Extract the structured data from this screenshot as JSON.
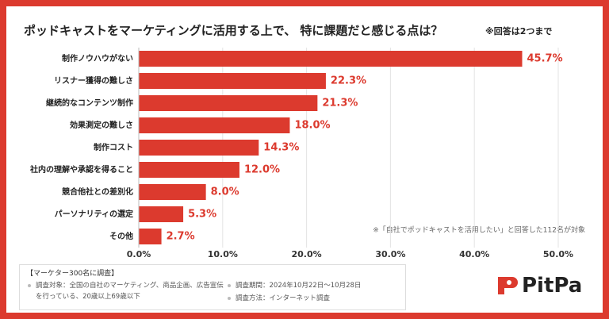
{
  "chart_data": {
    "type": "hbar",
    "title": "ポッドキャストをマーケティングに活用する上で、 特に課題だと感じる点は？",
    "subtitle": "※回答は2つまで",
    "categories": [
      "制作ノウハウがない",
      "リスナー獲得の難しさ",
      "継続的なコンテンツ制作",
      "効果測定の難しさ",
      "制作コスト",
      "社内の理解や承認を得ること",
      "競合他社との差別化",
      "パーソナリティの選定",
      "その他"
    ],
    "values": [
      45.7,
      22.3,
      21.3,
      18.0,
      14.3,
      12.0,
      8.0,
      5.3,
      2.7
    ],
    "value_labels": [
      "45.7%",
      "22.3%",
      "21.3%",
      "18.0%",
      "14.3%",
      "12.0%",
      "8.0%",
      "5.3%",
      "2.7%"
    ],
    "color": "#dc3a2e",
    "xlim": [
      0,
      50
    ],
    "xticks": [
      {
        "value": 0,
        "label": "0.0%"
      },
      {
        "value": 10,
        "label": "10.0%"
      },
      {
        "value": 20,
        "label": "20.0%"
      },
      {
        "value": 30,
        "label": "30.0%"
      },
      {
        "value": 40,
        "label": "40.0%"
      },
      {
        "value": 50,
        "label": "50.0%"
      }
    ],
    "grid": true,
    "annotation": "※「自社でポッドキャストを活用したい」と回答した112名が対象"
  },
  "footer": {
    "heading": "【マーケター300名に調査】",
    "items": [
      "調査対象：全国の自社のマーケティング、商品企画、広告宣伝を行っている、20歳以上69歳以下",
      "調査期間：2024年10月22日〜10月28日",
      "調査方法：インターネット調査"
    ],
    "logo": "PitPa"
  }
}
